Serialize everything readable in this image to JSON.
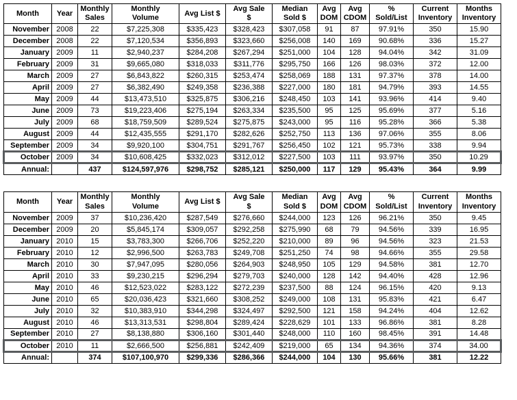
{
  "colors": {
    "text": "#000000",
    "grid_border": "#000000",
    "highlight_border": "#595c5e",
    "background": "#ffffff"
  },
  "chart_data": [
    {
      "type": "table",
      "columns": [
        "Month",
        "Year",
        "Monthly\nSales",
        "Monthly\nVolume",
        "Avg List $",
        "Avg Sale\n$",
        "Median\nSold $",
        "Avg\nDOM",
        "Avg\nCDOM",
        "%\nSold/List",
        "Current\nInventory",
        "Months\nInventory"
      ],
      "rows": [
        [
          "November",
          "2008",
          "22",
          "$7,225,308",
          "$335,423",
          "$328,423",
          "$307,058",
          "91",
          "87",
          "97.91%",
          "350",
          "15.90"
        ],
        [
          "December",
          "2008",
          "22",
          "$7,120,534",
          "$356,893",
          "$323,660",
          "$256,008",
          "140",
          "169",
          "90.68%",
          "336",
          "15.27"
        ],
        [
          "January",
          "2009",
          "11",
          "$2,940,237",
          "$284,208",
          "$267,294",
          "$251,000",
          "104",
          "128",
          "94.04%",
          "342",
          "31.09"
        ],
        [
          "February",
          "2009",
          "31",
          "$9,665,080",
          "$318,033",
          "$311,776",
          "$295,750",
          "166",
          "126",
          "98.03%",
          "372",
          "12.00"
        ],
        [
          "March",
          "2009",
          "27",
          "$6,843,822",
          "$260,315",
          "$253,474",
          "$258,069",
          "188",
          "131",
          "97.37%",
          "378",
          "14.00"
        ],
        [
          "April",
          "2009",
          "27",
          "$6,382,490",
          "$249,358",
          "$236,388",
          "$227,000",
          "180",
          "181",
          "94.79%",
          "393",
          "14.55"
        ],
        [
          "May",
          "2009",
          "44",
          "$13,473,510",
          "$325,875",
          "$306,216",
          "$248,450",
          "103",
          "141",
          "93.96%",
          "414",
          "9.40"
        ],
        [
          "June",
          "2009",
          "73",
          "$19,223,406",
          "$275,194",
          "$263,334",
          "$235,500",
          "95",
          "125",
          "95.69%",
          "377",
          "5.16"
        ],
        [
          "July",
          "2009",
          "68",
          "$18,759,509",
          "$289,524",
          "$275,875",
          "$243,000",
          "95",
          "116",
          "95.28%",
          "366",
          "5.38"
        ],
        [
          "August",
          "2009",
          "44",
          "$12,435,555",
          "$291,170",
          "$282,626",
          "$252,750",
          "113",
          "136",
          "97.06%",
          "355",
          "8.06"
        ],
        [
          "September",
          "2009",
          "34",
          "$9,920,100",
          "$304,751",
          "$291,767",
          "$256,450",
          "102",
          "121",
          "95.73%",
          "338",
          "9.94"
        ],
        [
          "October",
          "2009",
          "34",
          "$10,608,425",
          "$332,023",
          "$312,012",
          "$227,500",
          "103",
          "111",
          "93.97%",
          "350",
          "10.29"
        ]
      ],
      "highlight_row_index": 11,
      "footer_row": [
        "Annual:",
        "",
        "437",
        "$124,597,976",
        "$298,752",
        "$285,121",
        "$250,000",
        "117",
        "129",
        "95.43%",
        "364",
        "9.99"
      ]
    },
    {
      "type": "table",
      "columns": [
        "Month",
        "Year",
        "Monthly\nSales",
        "Monthly\nVolume",
        "Avg List $",
        "Avg Sale\n$",
        "Median\nSold $",
        "Avg\nDOM",
        "Avg\nCDOM",
        "%\nSold/List",
        "Current\nInventory",
        "Months\nInventory"
      ],
      "rows": [
        [
          "November",
          "2009",
          "37",
          "$10,236,420",
          "$287,549",
          "$276,660",
          "$244,000",
          "123",
          "126",
          "96.21%",
          "350",
          "9.45"
        ],
        [
          "December",
          "2009",
          "20",
          "$5,845,174",
          "$309,057",
          "$292,258",
          "$275,990",
          "68",
          "79",
          "94.56%",
          "339",
          "16.95"
        ],
        [
          "January",
          "2010",
          "15",
          "$3,783,300",
          "$266,706",
          "$252,220",
          "$210,000",
          "89",
          "96",
          "94.56%",
          "323",
          "21.53"
        ],
        [
          "February",
          "2010",
          "12",
          "$2,996,500",
          "$263,783",
          "$249,708",
          "$251,250",
          "74",
          "98",
          "94.66%",
          "355",
          "29.58"
        ],
        [
          "March",
          "2010",
          "30",
          "$7,947,095",
          "$280,056",
          "$264,903",
          "$248,950",
          "105",
          "129",
          "94.58%",
          "381",
          "12.70"
        ],
        [
          "April",
          "2010",
          "33",
          "$9,230,215",
          "$296,294",
          "$279,703",
          "$240,000",
          "128",
          "142",
          "94.40%",
          "428",
          "12.96"
        ],
        [
          "May",
          "2010",
          "46",
          "$12,523,022",
          "$283,122",
          "$272,239",
          "$237,500",
          "88",
          "124",
          "96.15%",
          "420",
          "9.13"
        ],
        [
          "June",
          "2010",
          "65",
          "$20,036,423",
          "$321,660",
          "$308,252",
          "$249,000",
          "108",
          "131",
          "95.83%",
          "421",
          "6.47"
        ],
        [
          "July",
          "2010",
          "32",
          "$10,383,910",
          "$344,298",
          "$324,497",
          "$292,500",
          "121",
          "158",
          "94.24%",
          "404",
          "12.62"
        ],
        [
          "August",
          "2010",
          "46",
          "$13,313,531",
          "$298,804",
          "$289,424",
          "$228,629",
          "101",
          "133",
          "96.86%",
          "381",
          "8.28"
        ],
        [
          "September",
          "2010",
          "27",
          "$8,138,880",
          "$306,160",
          "$301,440",
          "$248,000",
          "110",
          "160",
          "98.45%",
          "391",
          "14.48"
        ],
        [
          "October",
          "2010",
          "11",
          "$2,666,500",
          "$256,881",
          "$242,409",
          "$219,000",
          "65",
          "134",
          "94.36%",
          "374",
          "34.00"
        ]
      ],
      "highlight_row_index": 11,
      "footer_row": [
        "Annual:",
        "",
        "374",
        "$107,100,970",
        "$299,336",
        "$286,366",
        "$244,000",
        "104",
        "130",
        "95.66%",
        "381",
        "12.22"
      ]
    }
  ]
}
